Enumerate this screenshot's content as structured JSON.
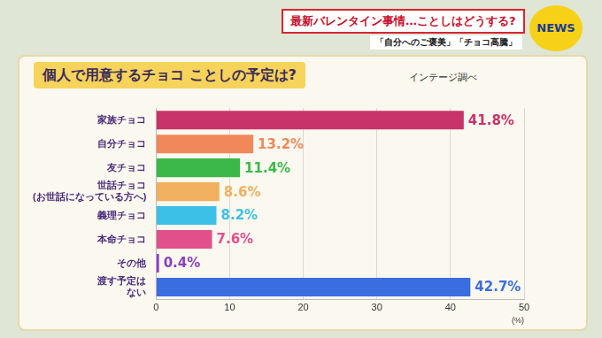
{
  "header": {
    "headline": "最新バレンタイン事情…ことしはどうする?",
    "tags": [
      "「自分へのご褒美」",
      "「チョコ高騰」"
    ],
    "logo": "NEWS"
  },
  "chart_data": {
    "type": "bar",
    "orientation": "horizontal",
    "title": "個人で用意するチョコ ことしの予定は?",
    "annotations": [
      "インテージ調べ"
    ],
    "x_label": "(%)",
    "categories": [
      "家族チョコ",
      "自分チョコ",
      "友チョコ",
      [
        "世話チョコ",
        "(お世話になっている方へ)"
      ],
      "義理チョコ",
      "本命チョコ",
      "その他",
      [
        "渡す予定は",
        "ない"
      ]
    ],
    "values": [
      41.8,
      13.2,
      11.4,
      8.6,
      8.2,
      7.6,
      0.4,
      42.7
    ],
    "value_labels": [
      "41.8%",
      "13.2%",
      "11.4%",
      "8.6%",
      "8.2%",
      "7.6%",
      "0.4%",
      "42.7%"
    ],
    "colors": [
      "#c8336a",
      "#f0885a",
      "#3cb84a",
      "#f0b060",
      "#3cc0e8",
      "#e0508a",
      "#8a40c0",
      "#3a6ee0"
    ],
    "xlim": [
      0,
      50
    ],
    "xticks": [
      0,
      10,
      20,
      30,
      40,
      50
    ],
    "grid": true,
    "data_labels": true
  }
}
